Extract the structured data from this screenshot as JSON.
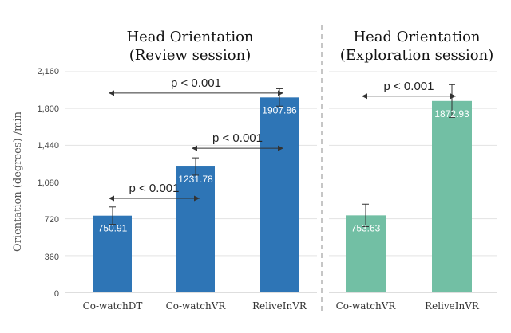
{
  "chart_data": [
    {
      "type": "bar",
      "title_lines": [
        "Head Orientation",
        "(Review session)"
      ],
      "ylabel": "Orientation (degrees) /min",
      "ylim": [
        0,
        2160
      ],
      "yticks": [
        "0",
        "360",
        "720",
        "1,080",
        "1,440",
        "1,800",
        "2,160"
      ],
      "categories": [
        "Co-watchDT",
        "Co-watchVR",
        "ReliveInVR"
      ],
      "values": [
        750.91,
        1231.78,
        1907.86
      ],
      "value_labels": [
        "750.91",
        "1231.78",
        "1907.86"
      ],
      "error": [
        85,
        85,
        85
      ],
      "color": "#2e75b6",
      "comparisons": [
        {
          "label": "p < 0.001",
          "from": 0,
          "to": 1,
          "y": 920
        },
        {
          "label": "p < 0.001",
          "from": 1,
          "to": 2,
          "y": 1410
        },
        {
          "label": "p < 0.001",
          "from": 0,
          "to": 2,
          "y": 1950
        }
      ]
    },
    {
      "type": "bar",
      "title_lines": [
        "Head Orientation",
        "(Exploration session)"
      ],
      "ylim": [
        0,
        2160
      ],
      "categories": [
        "Co-watchVR",
        "ReliveInVR"
      ],
      "values": [
        753.63,
        1872.93
      ],
      "value_labels": [
        "753.63",
        "1872.93"
      ],
      "error": [
        110,
        160
      ],
      "color": "#72bfa4",
      "comparisons": [
        {
          "label": "p < 0.001",
          "from": 0,
          "to": 1,
          "y": 1920
        }
      ]
    }
  ]
}
